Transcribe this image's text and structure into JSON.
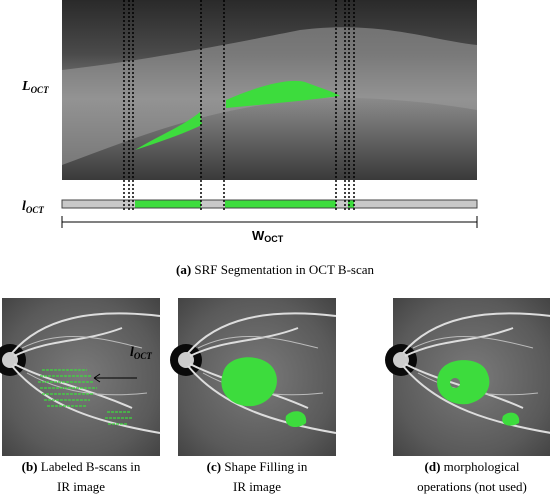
{
  "oct_panel": {
    "y_label": {
      "main": "L",
      "sub": "OCT"
    },
    "bar_label": {
      "main": "l",
      "sub": "OCT"
    },
    "width_label": {
      "main": "W",
      "sub": "OCT"
    },
    "caption": {
      "letter": "(a)",
      "text": "SRF Segmentation in OCT B-scan"
    }
  },
  "ir_panels": [
    {
      "letter": "(b)",
      "line1": "Labeled B-scans in",
      "line2": "IR image",
      "annotation": {
        "main": "l",
        "sub": "OCT"
      }
    },
    {
      "letter": "(c)",
      "line1": "Shape Filling in",
      "line2": "IR image"
    },
    {
      "letter": "(d)",
      "line1": "morphological",
      "line2": "operations (not used)"
    }
  ]
}
